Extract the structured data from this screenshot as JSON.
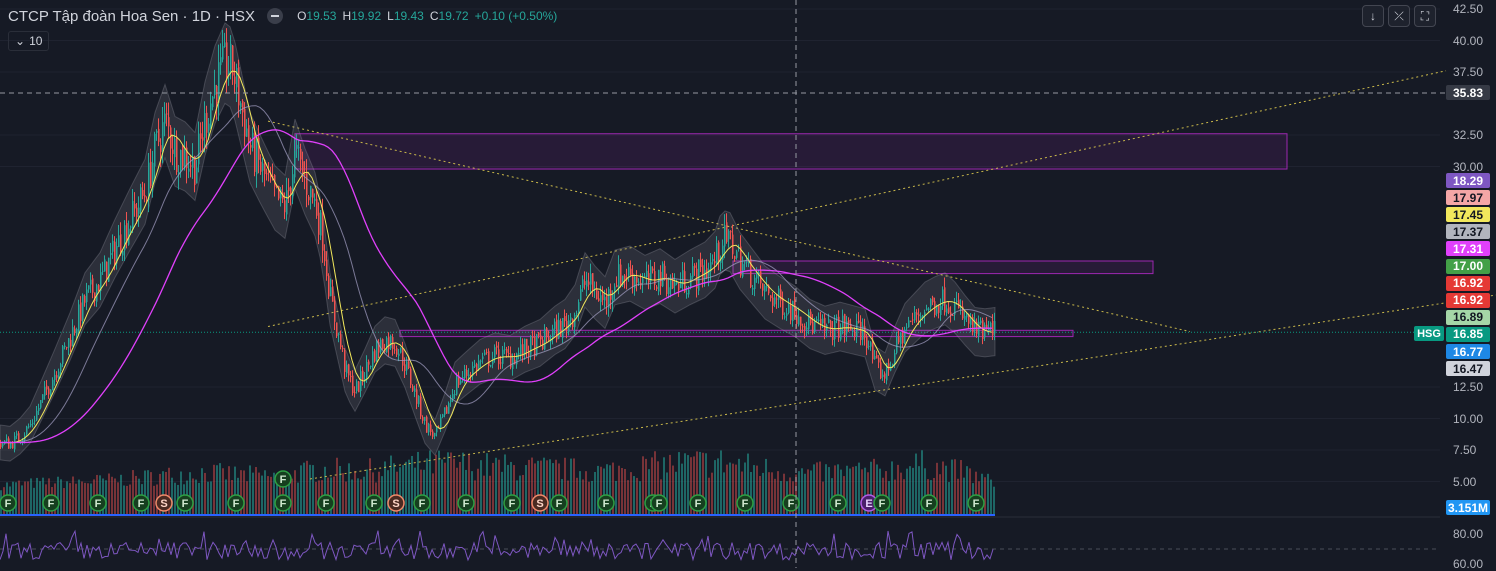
{
  "header": {
    "title": "CTCP Tập đoàn Hoa Sen · 1D · HSX",
    "open_label": "O",
    "open": "19.53",
    "high_label": "H",
    "high": "19.92",
    "low_label": "L",
    "low": "19.43",
    "close_label": "C",
    "close": "19.72",
    "change": "+0.10 (+0.50%)",
    "interval_badge": "10"
  },
  "toolbar": {
    "down_icon": "↓",
    "collapse_icon": "⤫",
    "fullscreen_icon": "⛶"
  },
  "colors": {
    "background": "#161a25",
    "up": "#26a69a",
    "down": "#ef5350",
    "ma_fast": "#f2e85c",
    "ma_slow": "#e040fb",
    "zone": "#9c27b0",
    "rsi": "#7e57c2"
  },
  "chart_data": {
    "type": "candlestick",
    "symbol": "HSG",
    "ylim": [
      3.5,
      43.0
    ],
    "y_ticks": [
      "42.50",
      "40.00",
      "37.50",
      "32.50",
      "30.00",
      "12.50",
      "10.00",
      "7.50",
      "5.00"
    ],
    "crosshair_price": "35.83",
    "price_labels": [
      {
        "value": "18.29",
        "color": "#7e57c2",
        "text_color": "#ffffff"
      },
      {
        "value": "17.97",
        "color": "#f4a6a6",
        "text_color": "#131722"
      },
      {
        "value": "17.45",
        "color": "#f2e85c",
        "text_color": "#131722"
      },
      {
        "value": "17.37",
        "color": "#b2b5be",
        "text_color": "#131722"
      },
      {
        "value": "17.31",
        "color": "#e040fb",
        "text_color": "#ffffff"
      },
      {
        "value": "17.00",
        "color": "#43a047",
        "text_color": "#ffffff"
      },
      {
        "value": "16.92",
        "color": "#e53935",
        "text_color": "#ffffff"
      },
      {
        "value": "16.92",
        "color": "#e53935",
        "text_color": "#ffffff"
      },
      {
        "value": "16.89",
        "color": "#a5d6a7",
        "text_color": "#131722"
      },
      {
        "value": "16.85",
        "color": "#089981",
        "text_color": "#ffffff"
      },
      {
        "value": "16.77",
        "color": "#1e88e5",
        "text_color": "#ffffff"
      },
      {
        "value": "16.47",
        "color": "#d1d4dc",
        "text_color": "#131722"
      }
    ],
    "last_price": "16.85",
    "volume_label": "3.151M",
    "rsi_ticks": [
      "80.00",
      "60.00"
    ],
    "price_path": [
      [
        0,
        8.1
      ],
      [
        10,
        8.0
      ],
      [
        20,
        8.6
      ],
      [
        30,
        9.5
      ],
      [
        40,
        11.2
      ],
      [
        55,
        13.8
      ],
      [
        70,
        16.5
      ],
      [
        85,
        19.5
      ],
      [
        100,
        21.0
      ],
      [
        115,
        23.5
      ],
      [
        130,
        25.8
      ],
      [
        145,
        28.0
      ],
      [
        155,
        31.5
      ],
      [
        165,
        33.6
      ],
      [
        175,
        31.2
      ],
      [
        185,
        30.8
      ],
      [
        195,
        30.0
      ],
      [
        205,
        33.8
      ],
      [
        215,
        36.5
      ],
      [
        225,
        38.2
      ],
      [
        232,
        37.8
      ],
      [
        240,
        35.0
      ],
      [
        250,
        31.5
      ],
      [
        262,
        29.5
      ],
      [
        275,
        27.5
      ],
      [
        285,
        26.8
      ],
      [
        295,
        31.0
      ],
      [
        305,
        28.8
      ],
      [
        315,
        27.0
      ],
      [
        322,
        24.5
      ],
      [
        330,
        19.5
      ],
      [
        338,
        16.5
      ],
      [
        346,
        13.5
      ],
      [
        355,
        12.2
      ],
      [
        365,
        13.8
      ],
      [
        375,
        15.5
      ],
      [
        385,
        16.2
      ],
      [
        395,
        16.0
      ],
      [
        405,
        14.2
      ],
      [
        415,
        11.8
      ],
      [
        425,
        9.5
      ],
      [
        435,
        8.5
      ],
      [
        445,
        10.5
      ],
      [
        455,
        12.8
      ],
      [
        465,
        13.5
      ],
      [
        480,
        14.5
      ],
      [
        495,
        15.0
      ],
      [
        510,
        14.8
      ],
      [
        525,
        15.5
      ],
      [
        540,
        16.0
      ],
      [
        555,
        17.0
      ],
      [
        565,
        17.5
      ],
      [
        575,
        18.6
      ],
      [
        585,
        21.0
      ],
      [
        595,
        20.0
      ],
      [
        605,
        19.2
      ],
      [
        615,
        21.2
      ],
      [
        630,
        21.5
      ],
      [
        645,
        20.8
      ],
      [
        660,
        21.3
      ],
      [
        675,
        20.5
      ],
      [
        690,
        21.2
      ],
      [
        705,
        21.8
      ],
      [
        715,
        22.6
      ],
      [
        722,
        24.2
      ],
      [
        730,
        24.0
      ],
      [
        740,
        22.5
      ],
      [
        750,
        21.5
      ],
      [
        765,
        20.0
      ],
      [
        780,
        19.2
      ],
      [
        795,
        18.5
      ],
      [
        810,
        17.5
      ],
      [
        825,
        17.0
      ],
      [
        840,
        17.3
      ],
      [
        855,
        17.0
      ],
      [
        865,
        16.8
      ],
      [
        875,
        14.0
      ],
      [
        885,
        13.5
      ],
      [
        895,
        15.5
      ],
      [
        905,
        17.2
      ],
      [
        915,
        18.0
      ],
      [
        925,
        18.8
      ],
      [
        935,
        19.2
      ],
      [
        945,
        19.5
      ],
      [
        955,
        18.8
      ],
      [
        965,
        17.8
      ],
      [
        975,
        16.9
      ],
      [
        985,
        16.8
      ],
      [
        995,
        16.9
      ]
    ],
    "volume_path": [
      [
        0,
        4.8
      ],
      [
        40,
        5.0
      ],
      [
        80,
        5.1
      ],
      [
        120,
        5.3
      ],
      [
        160,
        5.6
      ],
      [
        200,
        5.9
      ],
      [
        240,
        5.7
      ],
      [
        280,
        5.6
      ],
      [
        320,
        6.2
      ],
      [
        360,
        6.0
      ],
      [
        400,
        6.4
      ],
      [
        440,
        6.7
      ],
      [
        480,
        6.5
      ],
      [
        520,
        6.3
      ],
      [
        560,
        6.2
      ],
      [
        600,
        6.0
      ],
      [
        640,
        6.4
      ],
      [
        680,
        6.7
      ],
      [
        720,
        6.8
      ],
      [
        760,
        6.3
      ],
      [
        800,
        5.8
      ],
      [
        840,
        6.0
      ],
      [
        880,
        6.1
      ],
      [
        920,
        6.6
      ],
      [
        960,
        6.0
      ],
      [
        995,
        5.0
      ]
    ],
    "zones": [
      {
        "x1": 295,
        "x2": 1287,
        "y_top": 32.6,
        "y_bottom": 29.8
      },
      {
        "x1": 733,
        "x2": 1153,
        "y_top": 22.5,
        "y_bottom": 21.5
      },
      {
        "x1": 400,
        "x2": 1073,
        "y_top": 17.0,
        "y_bottom": 16.5
      }
    ],
    "trendlines": [
      {
        "x1": 268,
        "y1": 17.3,
        "x2": 1446,
        "y2": 37.6
      },
      {
        "x1": 268,
        "y1": 33.6,
        "x2": 1190,
        "y2": 16.9
      },
      {
        "x1": 310,
        "y1": 5.2,
        "x2": 1496,
        "y2": 19.8
      }
    ],
    "crosshair_x": 796,
    "event_markers": [
      {
        "x": 3,
        "label": "F",
        "kind": "F"
      },
      {
        "x": 51,
        "label": "F",
        "kind": "F"
      },
      {
        "x": 98,
        "label": "F",
        "kind": "F"
      },
      {
        "x": 141,
        "label": "F",
        "kind": "F"
      },
      {
        "x": 164,
        "label": "S",
        "kind": "S"
      },
      {
        "x": 185,
        "label": "F",
        "kind": "F"
      },
      {
        "x": 236,
        "label": "F",
        "kind": "F"
      },
      {
        "x": 283,
        "label": "F",
        "kind": "F"
      },
      {
        "x": 283,
        "label": "F",
        "kind": "F",
        "row": 2
      },
      {
        "x": 326,
        "label": "F",
        "kind": "F"
      },
      {
        "x": 374,
        "label": "F",
        "kind": "F"
      },
      {
        "x": 396,
        "label": "S",
        "kind": "S"
      },
      {
        "x": 422,
        "label": "F",
        "kind": "F"
      },
      {
        "x": 466,
        "label": "F",
        "kind": "F"
      },
      {
        "x": 512,
        "label": "F",
        "kind": "F"
      },
      {
        "x": 540,
        "label": "S",
        "kind": "S"
      },
      {
        "x": 559,
        "label": "F",
        "kind": "F"
      },
      {
        "x": 606,
        "label": "F",
        "kind": "F"
      },
      {
        "x": 653,
        "label": "F",
        "kind": "F"
      },
      {
        "x": 659,
        "label": "F",
        "kind": "F"
      },
      {
        "x": 698,
        "label": "F",
        "kind": "F"
      },
      {
        "x": 745,
        "label": "F",
        "kind": "F"
      },
      {
        "x": 791,
        "label": "F",
        "kind": "F"
      },
      {
        "x": 838,
        "label": "F",
        "kind": "F"
      },
      {
        "x": 869,
        "label": "E",
        "kind": "E"
      },
      {
        "x": 882,
        "label": "F",
        "kind": "F"
      },
      {
        "x": 929,
        "label": "F",
        "kind": "F"
      },
      {
        "x": 976,
        "label": "F",
        "kind": "F"
      }
    ]
  }
}
